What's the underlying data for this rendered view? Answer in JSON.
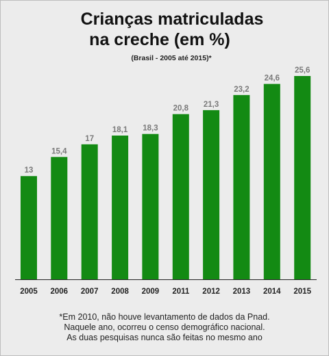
{
  "title_line1": "Crianças matriculadas",
  "title_line2": "na creche (em %)",
  "subtitle": "(Brasil - 2005 até 2015)*",
  "footnote": [
    "*Em 2010, não houve levantamento de dados da Pnad.",
    "Naquele ano, ocorreu o censo demográfico nacional.",
    "As duas pesquisas nunca são feitas no mesmo ano"
  ],
  "colors": {
    "bar": "#138a13",
    "value_label": "#7a7a7a",
    "axis": "#222222",
    "background": "#ececec"
  },
  "chart_data": {
    "type": "bar",
    "title": "Crianças matriculadas na creche (em %)",
    "subtitle": "(Brasil - 2005 até 2015)*",
    "xlabel": "",
    "ylabel": "",
    "categories": [
      "2005",
      "2006",
      "2007",
      "2008",
      "2009",
      "2011",
      "2012",
      "2013",
      "2014",
      "2015"
    ],
    "values": [
      13,
      15.4,
      17,
      18.1,
      18.3,
      20.8,
      21.3,
      23.2,
      24.6,
      25.6
    ],
    "value_labels": [
      "13",
      "15,4",
      "17",
      "18,1",
      "18,3",
      "20,8",
      "21,3",
      "23,2",
      "24,6",
      "25,6"
    ],
    "ylim": [
      0,
      25.6
    ],
    "grid": false,
    "legend": "none"
  }
}
